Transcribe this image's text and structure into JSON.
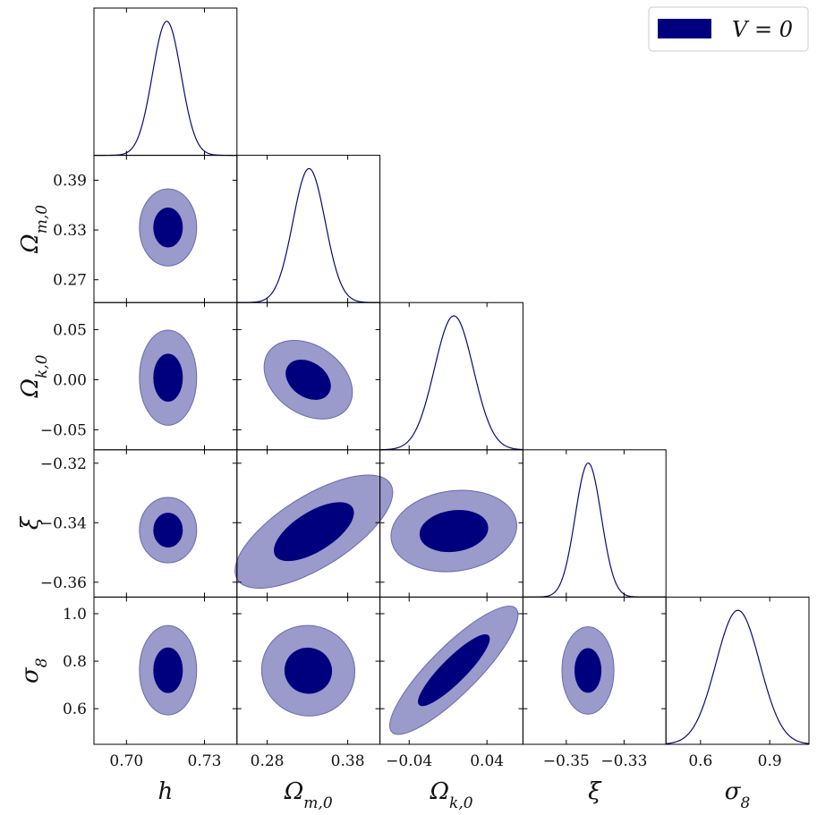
{
  "chart_data": {
    "type": "corner",
    "legend": {
      "label": "V = 0",
      "placement": "top-right"
    },
    "colors": {
      "line": "#0a0a7a",
      "inner": "#00007f",
      "outer": "#9a9acb",
      "outer_edge": "#6a6ab0"
    },
    "parameters": [
      {
        "id": "h",
        "label": "h",
        "sub": "",
        "range": [
          0.6875,
          0.7425
        ],
        "ticks": [
          0.7,
          0.73
        ],
        "tick_labels": [
          "0.70",
          "0.73"
        ],
        "mean": 0.7155,
        "sigma": 0.0055
      },
      {
        "id": "om",
        "label": "Ω",
        "sub": "m,0",
        "range": [
          0.2425,
          0.42
        ],
        "ticks": [
          0.27,
          0.33,
          0.39
        ],
        "tick_labels": [
          "0.27",
          "0.33",
          "0.39"
        ],
        "x_ticks": [
          0.28,
          0.38
        ],
        "x_tick_labels": [
          "0.28",
          "0.38"
        ],
        "mean": 0.332,
        "sigma": 0.02
      },
      {
        "id": "ok",
        "label": "Ω",
        "sub": "k,0",
        "range": [
          -0.07,
          0.077
        ],
        "ticks": [
          -0.05,
          0.0,
          0.05
        ],
        "tick_labels": [
          "−0.05",
          "0.00",
          "0.05"
        ],
        "x_ticks": [
          -0.04,
          0.04
        ],
        "x_tick_labels": [
          "−0.04",
          "0.04"
        ],
        "mean": 0.006,
        "sigma": 0.02
      },
      {
        "id": "xi",
        "label": "ξ",
        "sub": "",
        "range": [
          -0.365,
          -0.3155
        ],
        "ticks": [
          -0.36,
          -0.34,
          -0.32
        ],
        "tick_labels": [
          "−0.36",
          "−0.34",
          "−0.32"
        ],
        "x_ticks": [
          -0.35,
          -0.33
        ],
        "x_tick_labels": [
          "−0.35",
          "−0.33"
        ],
        "mean": -0.3424,
        "sigma": 0.0045
      },
      {
        "id": "s8",
        "label": "σ",
        "sub": "8",
        "range": [
          0.45,
          1.07
        ],
        "ticks": [
          0.6,
          0.8,
          1.0
        ],
        "tick_labels": [
          "0.6",
          "0.8",
          "1.0"
        ],
        "x_ticks": [
          0.6,
          0.9
        ],
        "x_tick_labels": [
          "0.6",
          "0.9"
        ],
        "mean": 0.762,
        "sigma": 0.095
      }
    ],
    "contours": [
      {
        "x": "h",
        "y": "om",
        "center": [
          0.716,
          0.333
        ],
        "inner_half_widths": [
          0.0055,
          0.0235
        ],
        "outer_half_widths": [
          0.011,
          0.0465
        ],
        "rotation_deg": 0
      },
      {
        "x": "h",
        "y": "ok",
        "center": [
          0.716,
          0.002
        ],
        "inner_half_widths": [
          0.0055,
          0.0235
        ],
        "outer_half_widths": [
          0.011,
          0.0475
        ],
        "rotation_deg": 0
      },
      {
        "x": "h",
        "y": "xi",
        "center": [
          0.716,
          -0.3425
        ],
        "inner_half_widths": [
          0.0055,
          0.0057
        ],
        "outer_half_widths": [
          0.011,
          0.011
        ],
        "rotation_deg": 0
      },
      {
        "x": "h",
        "y": "s8",
        "center": [
          0.716,
          0.762
        ],
        "inner_half_widths": [
          0.0055,
          0.094
        ],
        "outer_half_widths": [
          0.011,
          0.188
        ],
        "rotation_deg": 0
      },
      {
        "x": "om",
        "y": "ok",
        "center": [
          0.331,
          0.0
        ],
        "inner_half_widths": [
          0.03,
          0.017
        ],
        "outer_half_widths": [
          0.06,
          0.034
        ],
        "rotation_deg": -35
      },
      {
        "x": "om",
        "y": "xi",
        "center": [
          0.338,
          -0.343
        ],
        "inner_half_widths": [
          0.056,
          0.0065
        ],
        "outer_half_widths": [
          0.112,
          0.012
        ],
        "rotation_deg": 32
      },
      {
        "x": "om",
        "y": "s8",
        "center": [
          0.331,
          0.76
        ],
        "inner_half_widths": [
          0.029,
          0.095
        ],
        "outer_half_widths": [
          0.058,
          0.19
        ],
        "rotation_deg": -16
      },
      {
        "x": "ok",
        "y": "xi",
        "center": [
          0.006,
          -0.3428
        ],
        "inner_half_widths": [
          0.035,
          0.0068
        ],
        "outer_half_widths": [
          0.065,
          0.0135
        ],
        "rotation_deg": 8
      },
      {
        "x": "ok",
        "y": "s8",
        "center": [
          0.006,
          0.762
        ],
        "inner_half_widths": [
          0.05,
          0.05
        ],
        "outer_half_widths": [
          0.09,
          0.1
        ],
        "rotation_deg": 45
      },
      {
        "x": "xi",
        "y": "s8",
        "center": [
          -0.3425,
          0.761
        ],
        "inner_half_widths": [
          0.0045,
          0.092
        ],
        "outer_half_widths": [
          0.009,
          0.184
        ],
        "rotation_deg": 0
      }
    ]
  }
}
